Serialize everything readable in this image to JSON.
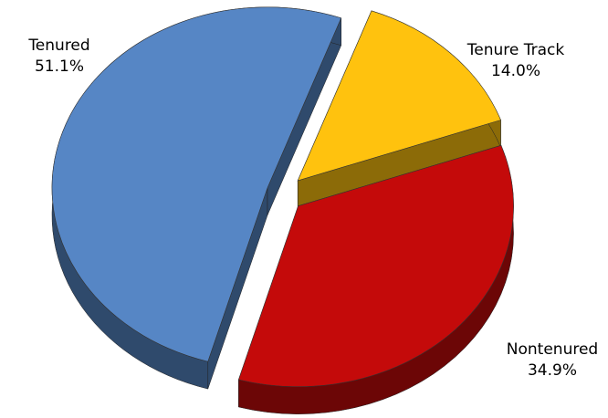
{
  "chart_data": {
    "type": "pie",
    "categories": [
      "Tenure Track",
      "Nontenured",
      "Tenured"
    ],
    "values": [
      14.0,
      34.9,
      51.1
    ],
    "value_labels": [
      "14.0%",
      "34.9%",
      "51.1%"
    ],
    "colors": [
      "#ffc20e",
      "#c40a0a",
      "#5686c5"
    ]
  }
}
